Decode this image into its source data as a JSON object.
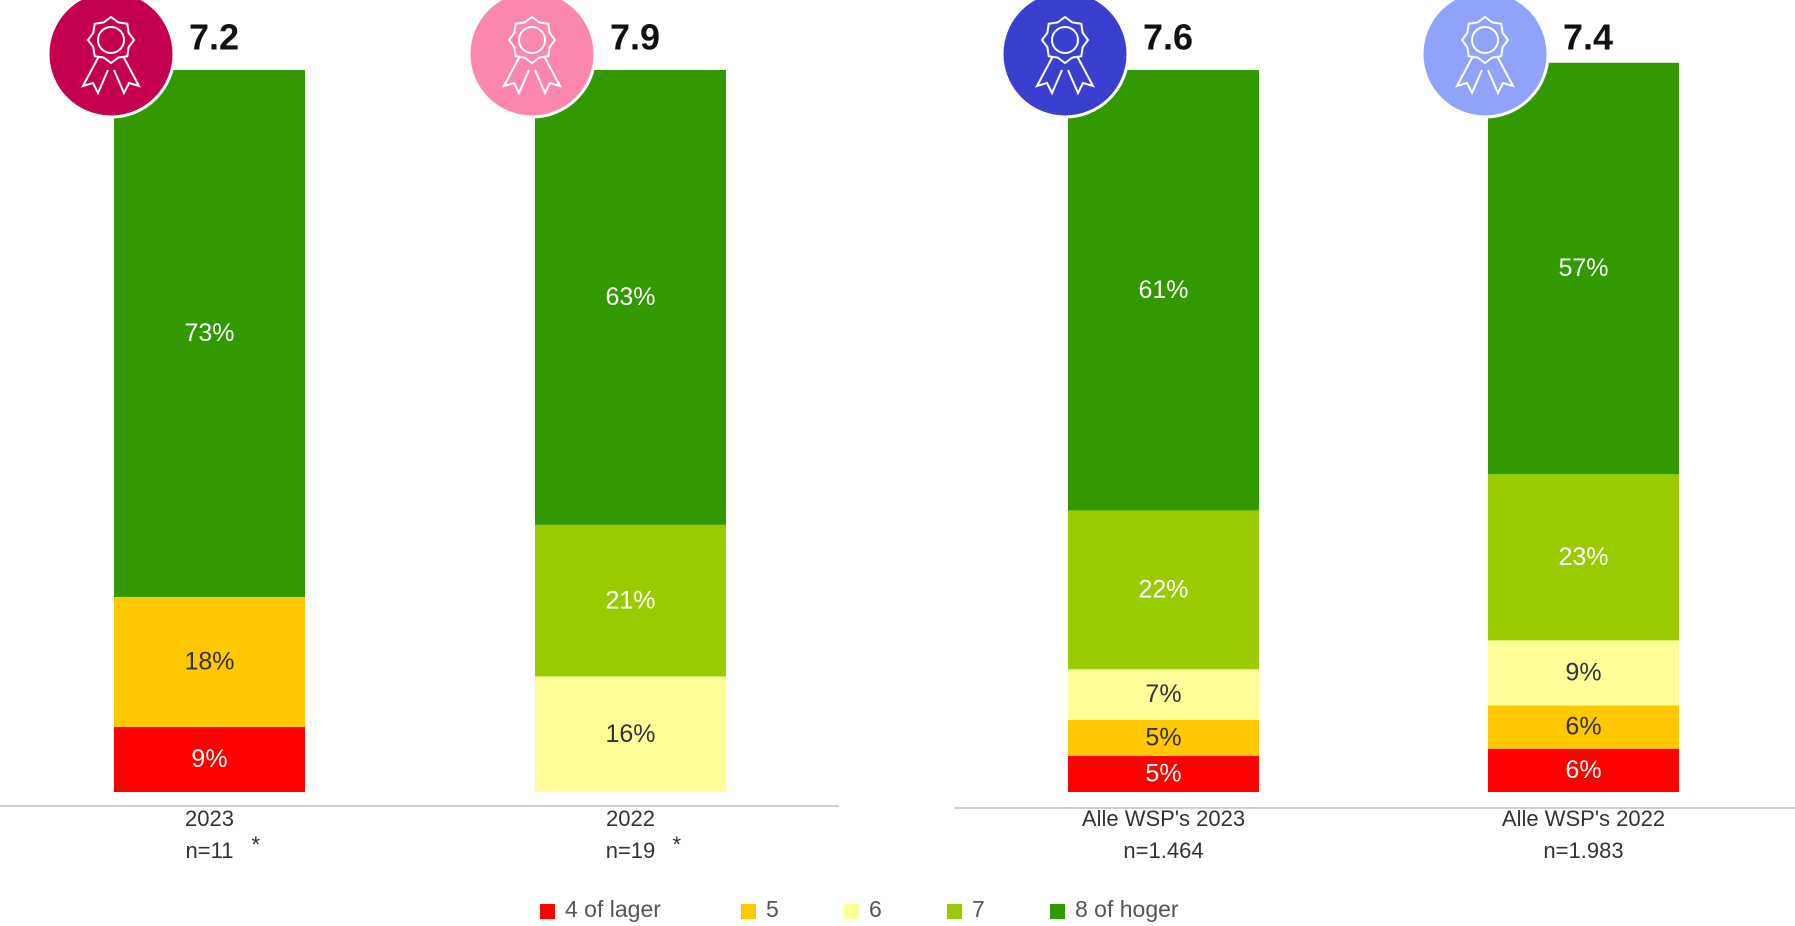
{
  "chart_data": {
    "type": "stacked-bar",
    "categories": [
      "2023",
      "2022",
      "Alle WSP's 2023",
      "Alle WSP's 2022"
    ],
    "sample_sizes": [
      "n=11",
      "n=19",
      "n=1.464",
      "n=1.983"
    ],
    "asterisks": [
      "*",
      "*",
      null,
      null
    ],
    "scores": [
      7.2,
      7.9,
      7.6,
      7.4
    ],
    "badge_colors": [
      "#c4004f",
      "#fb87ac",
      "#3a3fd0",
      "#8fa3fb"
    ],
    "ylim": [
      0,
      100
    ],
    "series": [
      {
        "name": "4 of lager",
        "color": "#ff0000",
        "label_color": "#ffffff",
        "values": [
          9,
          null,
          5,
          6
        ],
        "value_labels": [
          "9%",
          null,
          "5%",
          "6%"
        ]
      },
      {
        "name": "5",
        "color": "#ffc800",
        "label_color": "#333333",
        "values": [
          18,
          null,
          5,
          6
        ],
        "value_labels": [
          "18%",
          null,
          "5%",
          "6%"
        ]
      },
      {
        "name": "6",
        "color": "#ffff99",
        "label_color": "#333333",
        "values": [
          null,
          16,
          7,
          9
        ],
        "value_labels": [
          null,
          "16%",
          "7%",
          "9%"
        ]
      },
      {
        "name": "7",
        "color": "#99cc00",
        "label_color": "#ffffff",
        "values": [
          null,
          21,
          22,
          23
        ],
        "value_labels": [
          null,
          "21%",
          "22%",
          "23%"
        ]
      },
      {
        "name": "8 of hoger",
        "color": "#339900",
        "label_color": "#ffffff",
        "values": [
          73,
          63,
          61,
          57
        ],
        "value_labels": [
          "73%",
          "63%",
          "61%",
          "57%"
        ]
      }
    ]
  }
}
